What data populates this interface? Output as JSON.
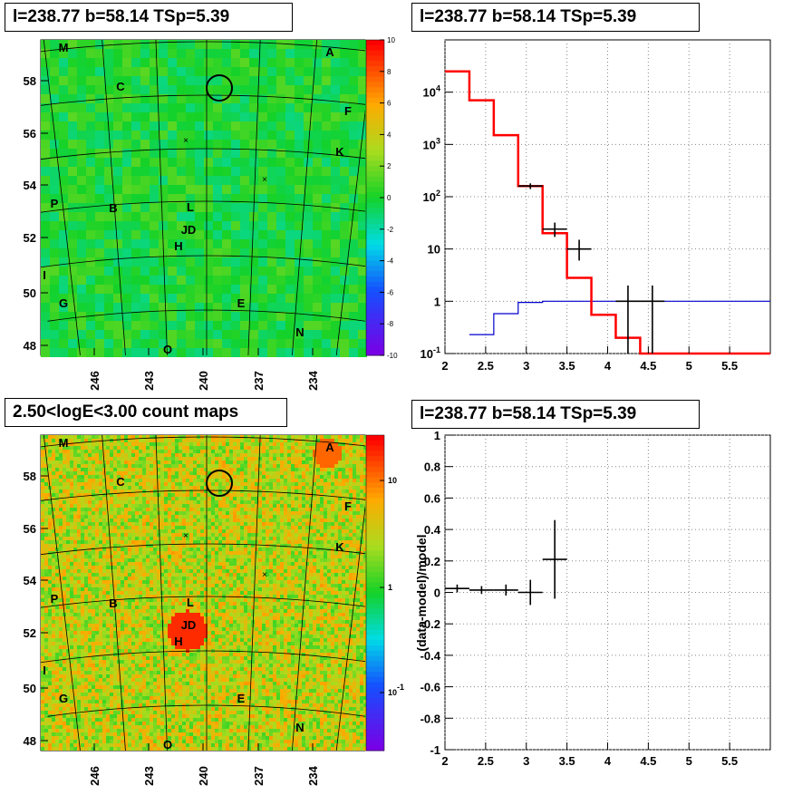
{
  "panels": {
    "tl": {
      "title": "l=238.77 b=58.14 TSp=5.39"
    },
    "tr": {
      "title": "l=238.77 b=58.14 TSp=5.39"
    },
    "bl": {
      "title": "2.50<logE<3.00 count maps"
    },
    "br": {
      "title": "l=238.77 b=58.14 TSp=5.39"
    }
  },
  "colors": {
    "model_line": "#ff0000",
    "background_line": "#0000cc",
    "data_points": "#000000",
    "grid": "#888888"
  },
  "chart_data": [
    {
      "id": "residual_map",
      "type": "heatmap",
      "title": "l=238.77 b=58.14 TSp=5.39",
      "palette": "rainbow",
      "colorbar": {
        "range": [
          -10,
          10
        ],
        "ticks": [
          "10",
          "8",
          "6",
          "4",
          "2",
          "0",
          "-2",
          "-4",
          "-6",
          "-8",
          "-10"
        ]
      },
      "x_ticks": [
        "246",
        "243",
        "240",
        "237",
        "234"
      ],
      "y_ticks": [
        "58",
        "56",
        "54",
        "52",
        "50",
        "48"
      ],
      "source_labels": [
        "M",
        "A",
        "C",
        "F",
        "K",
        "P",
        "B",
        "L",
        "JD",
        "H",
        "I",
        "G",
        "E",
        "N",
        "O"
      ],
      "markers": [
        "circle",
        "x",
        "x"
      ]
    },
    {
      "id": "spectrum",
      "type": "line",
      "title": "l=238.77 b=58.14 TSp=5.39",
      "y_scale": "log",
      "xlim": [
        2,
        6
      ],
      "ylim": [
        0.1,
        100000
      ],
      "x_ticks": [
        "2",
        "2.5",
        "3",
        "3.5",
        "4",
        "4.5",
        "5",
        "5.5"
      ],
      "y_ticks": [
        "10^-1",
        "1",
        "10",
        "10^2",
        "10^3",
        "10^4"
      ],
      "grid": true,
      "series": [
        {
          "style": "red-histogram",
          "bin_edges": [
            2.0,
            2.3,
            2.6,
            2.9,
            3.2,
            3.5,
            3.8,
            4.1,
            4.4,
            6.0
          ],
          "values": [
            25000,
            7000,
            1500,
            160,
            20,
            2.8,
            0.55,
            0.2,
            0.1
          ]
        },
        {
          "style": "blue-histogram",
          "bin_edges": [
            2.3,
            2.6,
            2.9,
            3.2,
            3.5,
            3.8,
            4.1,
            4.4,
            6.0
          ],
          "values": [
            0.23,
            0.58,
            0.95,
            1.0,
            1.0,
            1.0,
            1.0,
            1.0
          ]
        },
        {
          "style": "data-points",
          "points": [
            {
              "x": 3.05,
              "y": 160,
              "xerr": 0.15,
              "ylo": 140,
              "yhi": 180
            },
            {
              "x": 3.35,
              "y": 24,
              "xerr": 0.15,
              "ylo": 17,
              "yhi": 32
            },
            {
              "x": 3.65,
              "y": 10,
              "xerr": 0.15,
              "ylo": 6,
              "yhi": 15
            },
            {
              "x": 4.25,
              "y": 1.0,
              "xerr": 0.15,
              "ylo": 0.1,
              "yhi": 2.0
            },
            {
              "x": 4.55,
              "y": 1.0,
              "xerr": 0.15,
              "ylo": 0.1,
              "yhi": 2.0
            }
          ]
        }
      ]
    },
    {
      "id": "count_map",
      "type": "heatmap",
      "title": "2.50<logE<3.00 count maps",
      "palette": "rainbow",
      "colorbar": {
        "scale": "log",
        "ticks": [
          "10",
          "1",
          "10^-1"
        ]
      },
      "x_ticks": [
        "246",
        "243",
        "240",
        "237",
        "234"
      ],
      "y_ticks": [
        "58",
        "56",
        "54",
        "52",
        "50",
        "48"
      ],
      "source_labels": [
        "M",
        "A",
        "C",
        "F",
        "K",
        "P",
        "B",
        "L",
        "JD",
        "H",
        "I",
        "G",
        "E",
        "N",
        "O"
      ],
      "markers": [
        "circle",
        "x",
        "x"
      ]
    },
    {
      "id": "residuals",
      "type": "scatter",
      "title": "l=238.77 b=58.14 TSp=5.39",
      "ylabel": "(data-model)/model",
      "xlim": [
        2,
        6
      ],
      "ylim": [
        -1,
        1
      ],
      "x_ticks": [
        "2",
        "2.5",
        "3",
        "3.5",
        "4",
        "4.5",
        "5",
        "5.5"
      ],
      "y_ticks": [
        "1",
        "0.8",
        "0.6",
        "0.4",
        "0.2",
        "0",
        "-0.2",
        "-0.4",
        "-0.6",
        "-0.8",
        "-1"
      ],
      "grid": true,
      "points": [
        {
          "x": 2.15,
          "y": 0.025,
          "xerr": 0.15,
          "ylo": 0.0,
          "yhi": 0.05
        },
        {
          "x": 2.45,
          "y": 0.015,
          "xerr": 0.15,
          "ylo": -0.01,
          "yhi": 0.04
        },
        {
          "x": 2.75,
          "y": 0.015,
          "xerr": 0.15,
          "ylo": -0.02,
          "yhi": 0.05
        },
        {
          "x": 3.05,
          "y": 0.0,
          "xerr": 0.15,
          "ylo": -0.08,
          "yhi": 0.08
        },
        {
          "x": 3.35,
          "y": 0.21,
          "xerr": 0.15,
          "ylo": -0.04,
          "yhi": 0.46
        }
      ]
    }
  ]
}
